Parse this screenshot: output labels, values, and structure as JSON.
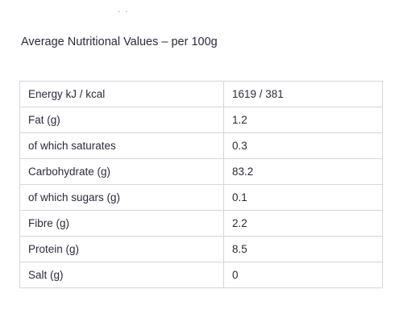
{
  "top_fragment": "· ·",
  "heading": "Average Nutritional Values – per 100g",
  "rows": [
    {
      "label": "Energy kJ / kcal",
      "value": "1619 / 381"
    },
    {
      "label": "Fat (g)",
      "value": "1.2"
    },
    {
      "label": "of which saturates",
      "value": "0.3"
    },
    {
      "label": "Carbohydrate (g)",
      "value": "83.2"
    },
    {
      "label": "of which sugars (g)",
      "value": "0.1"
    },
    {
      "label": "Fibre (g)",
      "value": "2.2"
    },
    {
      "label": "Protein (g)",
      "value": "8.5"
    },
    {
      "label": "Salt (g)",
      "value": "0"
    }
  ]
}
